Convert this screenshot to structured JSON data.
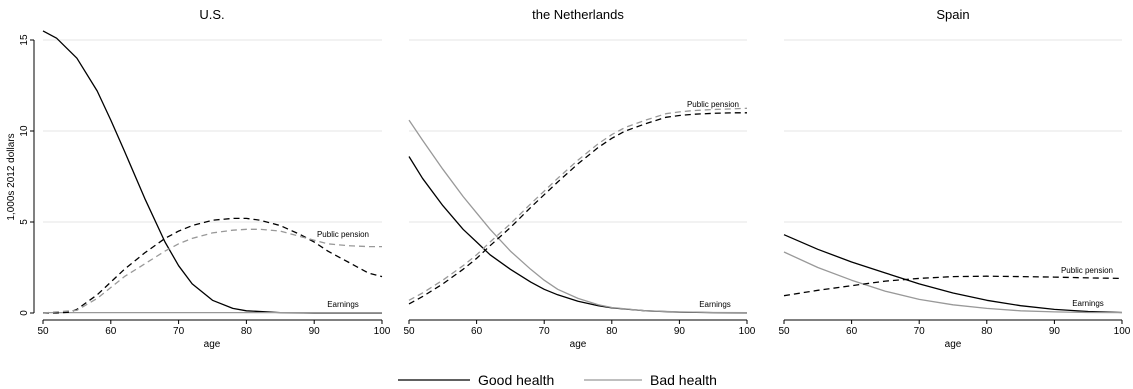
{
  "chart_data": {
    "type": "line",
    "ylabel": "1,000s 2012 dollars",
    "xlim": [
      50,
      100
    ],
    "ylim": [
      0,
      15
    ],
    "yticks": [
      0,
      5,
      10,
      15
    ],
    "xticks": [
      50,
      60,
      70,
      80,
      90,
      100
    ],
    "grid": true,
    "legend": {
      "position": "bottom",
      "entries": [
        {
          "name": "Good health",
          "color": "#000000"
        },
        {
          "name": "Bad health",
          "color": "#999999"
        }
      ]
    },
    "panels": [
      {
        "title": "U.S.",
        "xlabel": "age",
        "annotations": [
          {
            "text": "Public pension",
            "x": 94,
            "y": 4.3
          },
          {
            "text": "Earnings",
            "x": 94,
            "y": 0.45
          }
        ],
        "series": [
          {
            "health": "Good health",
            "income": "Earnings",
            "style": "solid",
            "x": [
              50,
              52,
              55,
              58,
              60,
              62,
              65,
              68,
              70,
              72,
              75,
              78,
              80,
              85,
              90,
              95,
              100
            ],
            "y": [
              15.5,
              15.1,
              14.0,
              12.2,
              10.6,
              8.9,
              6.3,
              3.9,
              2.6,
              1.6,
              0.7,
              0.25,
              0.12,
              0.02,
              0.0,
              0.0,
              0.0
            ]
          },
          {
            "health": "Bad health",
            "income": "Earnings",
            "style": "solid",
            "x": [
              50,
              60,
              70,
              80,
              90,
              100
            ],
            "y": [
              0.02,
              0.02,
              0.02,
              0.02,
              0.02,
              0.02
            ]
          },
          {
            "health": "Good health",
            "income": "Public pension",
            "style": "dashed",
            "x": [
              50,
              52,
              54,
              55,
              58,
              60,
              62,
              65,
              68,
              70,
              72,
              75,
              78,
              80,
              82,
              85,
              88,
              90,
              92,
              95,
              98,
              100
            ],
            "y": [
              0,
              0,
              0.05,
              0.2,
              1.0,
              1.7,
              2.4,
              3.3,
              4.1,
              4.5,
              4.8,
              5.1,
              5.2,
              5.2,
              5.1,
              4.8,
              4.3,
              3.9,
              3.4,
              2.8,
              2.2,
              2.0
            ]
          },
          {
            "health": "Bad health",
            "income": "Public pension",
            "style": "dashed",
            "x": [
              50,
              55,
              58,
              60,
              62,
              65,
              68,
              70,
              72,
              75,
              78,
              80,
              82,
              85,
              88,
              90,
              92,
              95,
              98,
              100
            ],
            "y": [
              0,
              0.15,
              0.8,
              1.4,
              2.0,
              2.7,
              3.4,
              3.8,
              4.1,
              4.4,
              4.55,
              4.6,
              4.6,
              4.5,
              4.2,
              4.0,
              3.8,
              3.7,
              3.65,
              3.65
            ]
          }
        ]
      },
      {
        "title": "the Netherlands",
        "xlabel": "age",
        "annotations": [
          {
            "text": "Public pension",
            "x": 97,
            "y": 11.7
          },
          {
            "text": "Earnings",
            "x": 95,
            "y": 0.45
          }
        ],
        "series": [
          {
            "health": "Good health",
            "income": "Earnings",
            "style": "solid",
            "x": [
              50,
              52,
              55,
              58,
              60,
              62,
              65,
              68,
              70,
              72,
              75,
              78,
              80,
              85,
              90,
              95,
              100
            ],
            "y": [
              8.6,
              7.4,
              5.9,
              4.6,
              3.9,
              3.2,
              2.4,
              1.7,
              1.3,
              1.0,
              0.65,
              0.4,
              0.28,
              0.12,
              0.05,
              0.02,
              0.01
            ]
          },
          {
            "health": "Bad health",
            "income": "Earnings",
            "style": "solid",
            "x": [
              50,
              52,
              55,
              58,
              60,
              62,
              65,
              68,
              70,
              72,
              75,
              78,
              80,
              85,
              90,
              95,
              100
            ],
            "y": [
              10.6,
              9.5,
              7.9,
              6.4,
              5.5,
              4.6,
              3.4,
              2.4,
              1.8,
              1.3,
              0.8,
              0.45,
              0.3,
              0.12,
              0.06,
              0.03,
              0.02
            ]
          },
          {
            "health": "Good health",
            "income": "Public pension",
            "style": "dashed",
            "x": [
              50,
              52,
              55,
              58,
              60,
              62,
              65,
              68,
              70,
              72,
              75,
              78,
              80,
              82,
              85,
              88,
              90,
              92,
              95,
              98,
              100
            ],
            "y": [
              0.5,
              0.9,
              1.6,
              2.4,
              3.0,
              3.7,
              4.7,
              5.8,
              6.5,
              7.2,
              8.2,
              9.1,
              9.6,
              10.0,
              10.4,
              10.75,
              10.85,
              10.92,
              10.97,
              11.0,
              11.0
            ]
          },
          {
            "health": "Bad health",
            "income": "Public pension",
            "style": "dashed",
            "x": [
              50,
              52,
              55,
              58,
              60,
              62,
              65,
              68,
              70,
              72,
              75,
              78,
              80,
              82,
              85,
              88,
              90,
              92,
              95,
              98,
              100
            ],
            "y": [
              0.7,
              1.1,
              1.8,
              2.6,
              3.2,
              3.9,
              4.9,
              6.0,
              6.7,
              7.4,
              8.4,
              9.3,
              9.8,
              10.2,
              10.6,
              10.95,
              11.05,
              11.12,
              11.18,
              11.22,
              11.25
            ]
          }
        ]
      },
      {
        "title": "Spain",
        "xlabel": "age",
        "annotations": [
          {
            "text": "Public pension",
            "x": 96,
            "y": 2.3
          },
          {
            "text": "Earnings",
            "x": 97,
            "y": 0.5
          }
        ],
        "series": [
          {
            "health": "Good health",
            "income": "Earnings",
            "style": "solid",
            "x": [
              50,
              55,
              60,
              65,
              70,
              75,
              80,
              85,
              90,
              95,
              100
            ],
            "y": [
              4.3,
              3.5,
              2.8,
              2.2,
              1.6,
              1.1,
              0.7,
              0.4,
              0.2,
              0.08,
              0.03
            ]
          },
          {
            "health": "Bad health",
            "income": "Earnings",
            "style": "solid",
            "x": [
              50,
              55,
              60,
              65,
              70,
              75,
              80,
              85,
              90,
              95,
              100
            ],
            "y": [
              3.35,
              2.5,
              1.8,
              1.2,
              0.75,
              0.45,
              0.25,
              0.12,
              0.06,
              0.03,
              0.02
            ]
          },
          {
            "health": "Good health",
            "income": "Public pension",
            "style": "dashed",
            "x": [
              50,
              55,
              60,
              65,
              70,
              75,
              80,
              85,
              90,
              95,
              100
            ],
            "y": [
              0.95,
              1.25,
              1.5,
              1.75,
              1.9,
              2.0,
              2.02,
              2.0,
              1.97,
              1.93,
              1.9
            ]
          }
        ]
      }
    ]
  }
}
